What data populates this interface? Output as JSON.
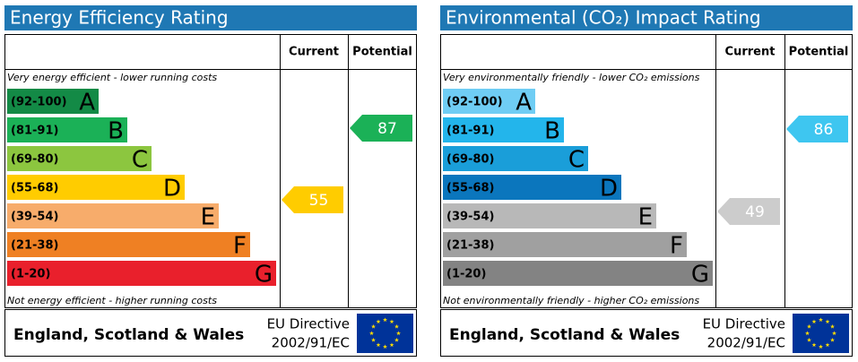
{
  "panels": [
    {
      "title": "Energy Efficiency Rating",
      "headers": [
        "Current",
        "Potential"
      ],
      "top_note": "Very energy efficient - lower running costs",
      "bottom_note": "Not energy efficient - higher running costs",
      "bands": [
        {
          "range": "(92-100)",
          "letter": "A",
          "color": "#138a46"
        },
        {
          "range": "(81-91)",
          "letter": "B",
          "color": "#1bb157"
        },
        {
          "range": "(69-80)",
          "letter": "C",
          "color": "#8cc63f"
        },
        {
          "range": "(55-68)",
          "letter": "D",
          "color": "#ffcc00"
        },
        {
          "range": "(39-54)",
          "letter": "E",
          "color": "#f7ac6b"
        },
        {
          "range": "(21-38)",
          "letter": "F",
          "color": "#ef8023"
        },
        {
          "range": "(1-20)",
          "letter": "G",
          "color": "#e9202c"
        }
      ],
      "current": "55",
      "potential": "87",
      "footer": {
        "region": "England, Scotland & Wales",
        "directive": [
          "EU Directive",
          "2002/91/EC"
        ]
      }
    },
    {
      "title": "Environmental (CO₂) Impact Rating",
      "headers": [
        "Current",
        "Potential"
      ],
      "top_note": "Very environmentally friendly - lower CO₂ emissions",
      "bottom_note": "Not environmentally friendly - higher CO₂ emissions",
      "bands": [
        {
          "range": "(92-100)",
          "letter": "A",
          "color": "#6fcdf4"
        },
        {
          "range": "(81-91)",
          "letter": "B",
          "color": "#23b5eb"
        },
        {
          "range": "(69-80)",
          "letter": "C",
          "color": "#1a9ed9"
        },
        {
          "range": "(55-68)",
          "letter": "D",
          "color": "#0b76bd"
        },
        {
          "range": "(39-54)",
          "letter": "E",
          "color": "#b8b8b8"
        },
        {
          "range": "(21-38)",
          "letter": "F",
          "color": "#a0a0a0"
        },
        {
          "range": "(1-20)",
          "letter": "G",
          "color": "#838383"
        }
      ],
      "current": "49",
      "potential": "86",
      "footer": {
        "region": "England, Scotland & Wales",
        "directive": [
          "EU Directive",
          "2002/91/EC"
        ]
      }
    }
  ]
}
